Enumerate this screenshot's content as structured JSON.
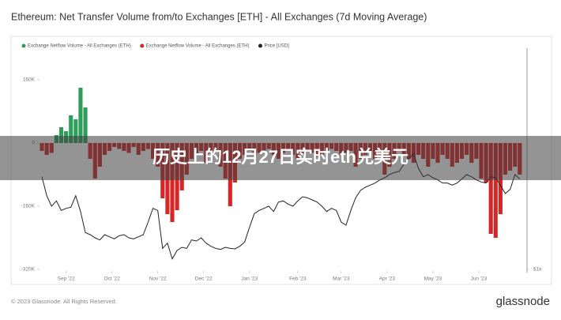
{
  "chart_data": {
    "type": "bar-line",
    "title": "Ethereum: Net Transfer Volume from/to Exchanges [ETH] - All Exchanges (7d Moving Average)",
    "annotation": "历史上的12月27日实时eth兑美元",
    "source": "© 2023 Glassnode. All Rights Reserved.",
    "brand": "glassnode",
    "grid": false,
    "ylim": [
      -320000,
      240000
    ],
    "yticks": [
      {
        "value": 160000,
        "label": "160K"
      },
      0,
      {
        "value": -160000,
        "label": "-160K"
      },
      {
        "value": -320000,
        "label": "-320K"
      }
    ],
    "y2lim": [
      1000,
      3100
    ],
    "y2ticks": [
      {
        "value": 1000,
        "label": "$1k"
      }
    ],
    "xticks": [
      {
        "value": 5,
        "label": "Sep '22"
      },
      {
        "value": 14.5,
        "label": "Oct '22"
      },
      {
        "value": 24,
        "label": "Nov '22"
      },
      {
        "value": 33.5,
        "label": "Dec '22"
      },
      {
        "value": 43,
        "label": "Jan '23"
      },
      {
        "value": 53,
        "label": "Feb '23"
      },
      {
        "value": 62,
        "label": "Mar '23"
      },
      {
        "value": 71.5,
        "label": "Apr '23"
      },
      {
        "value": 81,
        "label": "May '23"
      },
      {
        "value": 90.5,
        "label": "Jun '23"
      }
    ],
    "series": [
      {
        "name": "Exchange Netflow Volume - All Exchanges (ETH)",
        "color": "#2e9e5b",
        "values": [
          null,
          null,
          null,
          20000,
          40000,
          30000,
          70000,
          60000,
          140000,
          90000,
          null,
          null,
          null,
          null,
          null,
          null,
          null,
          null,
          null,
          null,
          null,
          null,
          null,
          null,
          null,
          null,
          null,
          null,
          null,
          null,
          null,
          null,
          null,
          null,
          null,
          null,
          null,
          null,
          null,
          null,
          null,
          null,
          null,
          null,
          null,
          null,
          null,
          null,
          null,
          null,
          null,
          null,
          null,
          null,
          null,
          null,
          null,
          null,
          null,
          null,
          null,
          null,
          null,
          null,
          null,
          null,
          null,
          null,
          null,
          null,
          null,
          null,
          null,
          null,
          null,
          null,
          null,
          null,
          null,
          null,
          null,
          null,
          null,
          null,
          null,
          null,
          null,
          null,
          null,
          null,
          null,
          null,
          null,
          null,
          null,
          null,
          null,
          null,
          null,
          null,
          null
        ]
      },
      {
        "name": "Exchange Netflow Volume - All Exchanges (ETH)",
        "color": "#d62728",
        "values": [
          -20000,
          -30000,
          -25000,
          null,
          null,
          null,
          null,
          null,
          null,
          null,
          -40000,
          -90000,
          -60000,
          -30000,
          -20000,
          -10000,
          -15000,
          -20000,
          -25000,
          -10000,
          -30000,
          -20000,
          -15000,
          -40000,
          -60000,
          -140000,
          -180000,
          -200000,
          -170000,
          -120000,
          -80000,
          -40000,
          -30000,
          -20000,
          -50000,
          -25000,
          -20000,
          -60000,
          -90000,
          -160000,
          -100000,
          -40000,
          -30000,
          -20000,
          -30000,
          -25000,
          -20000,
          -15000,
          -30000,
          -40000,
          -25000,
          -20000,
          -30000,
          -40000,
          -30000,
          -20000,
          -25000,
          -35000,
          -30000,
          -20000,
          -15000,
          -20000,
          -30000,
          -25000,
          -20000,
          -60000,
          -40000,
          -30000,
          -20000,
          -40000,
          -30000,
          -80000,
          -60000,
          -40000,
          -20000,
          -30000,
          -40000,
          -50000,
          -30000,
          -40000,
          -60000,
          -40000,
          -50000,
          -30000,
          -40000,
          -60000,
          -50000,
          -40000,
          -30000,
          -50000,
          -40000,
          -90000,
          -100000,
          -230000,
          -240000,
          -180000,
          -80000,
          -70000,
          -60000,
          -80000
        ]
      },
      {
        "name": "Price [USD]",
        "color": "#222222",
        "axis": "y2",
        "values": [
          1880,
          1700,
          1600,
          1650,
          1560,
          1580,
          1590,
          1700,
          1550,
          1350,
          1330,
          1300,
          1280,
          1330,
          1310,
          1290,
          1320,
          1330,
          1300,
          1290,
          1310,
          1330,
          1450,
          1580,
          1560,
          1200,
          1250,
          1100,
          1180,
          1210,
          1200,
          1280,
          1270,
          1300,
          1250,
          1220,
          1200,
          1190,
          1210,
          1200,
          1195,
          1220,
          1260,
          1400,
          1530,
          1560,
          1580,
          1600,
          1550,
          1640,
          1650,
          1620,
          1600,
          1650,
          1690,
          1680,
          1660,
          1640,
          1600,
          1550,
          1580,
          1560,
          1450,
          1420,
          1560,
          1680,
          1750,
          1780,
          1800,
          1820,
          1850,
          1870,
          1900,
          1920,
          1930,
          2000,
          2050,
          2100,
          1960,
          1880,
          1900,
          1870,
          1850,
          1820,
          1820,
          1800,
          1820,
          1860,
          1900,
          1880,
          1850,
          1830,
          1820,
          1880,
          1870,
          1800,
          1720,
          1760,
          1900,
          1860
        ]
      }
    ]
  }
}
